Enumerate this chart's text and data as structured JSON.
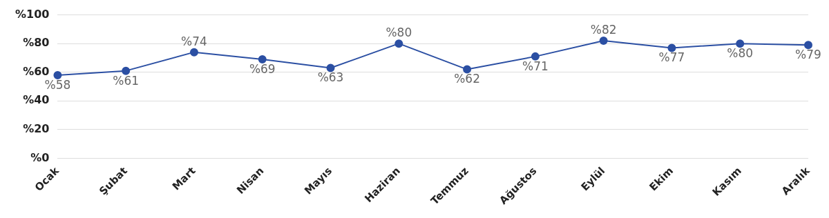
{
  "chart_data": {
    "type": "line",
    "categories": [
      "Ocak",
      "Şubat",
      "Mart",
      "Nisan",
      "Mayıs",
      "Haziran",
      "Temmuz",
      "Ağustos",
      "Eylül",
      "Ekim",
      "Kasım",
      "Aralık"
    ],
    "values": [
      58,
      61,
      74,
      69,
      63,
      80,
      62,
      71,
      82,
      77,
      80,
      79
    ],
    "value_labels": [
      "%58",
      "%61",
      "%74",
      "%69",
      "%63",
      "%80",
      "%62",
      "%71",
      "%82",
      "%77",
      "%80",
      "%79"
    ],
    "color": "#2b4fa3",
    "ylim": [
      0,
      100
    ],
    "yticks": [
      {
        "value": 0,
        "label": "%0"
      },
      {
        "value": 20,
        "label": "%20"
      },
      {
        "value": 40,
        "label": "%40"
      },
      {
        "value": 60,
        "label": "%60"
      },
      {
        "value": 80,
        "label": "%80"
      },
      {
        "value": 100,
        "label": "%100"
      }
    ],
    "grid": "y",
    "marker": "circle",
    "line_style": "solid",
    "legend": false
  }
}
